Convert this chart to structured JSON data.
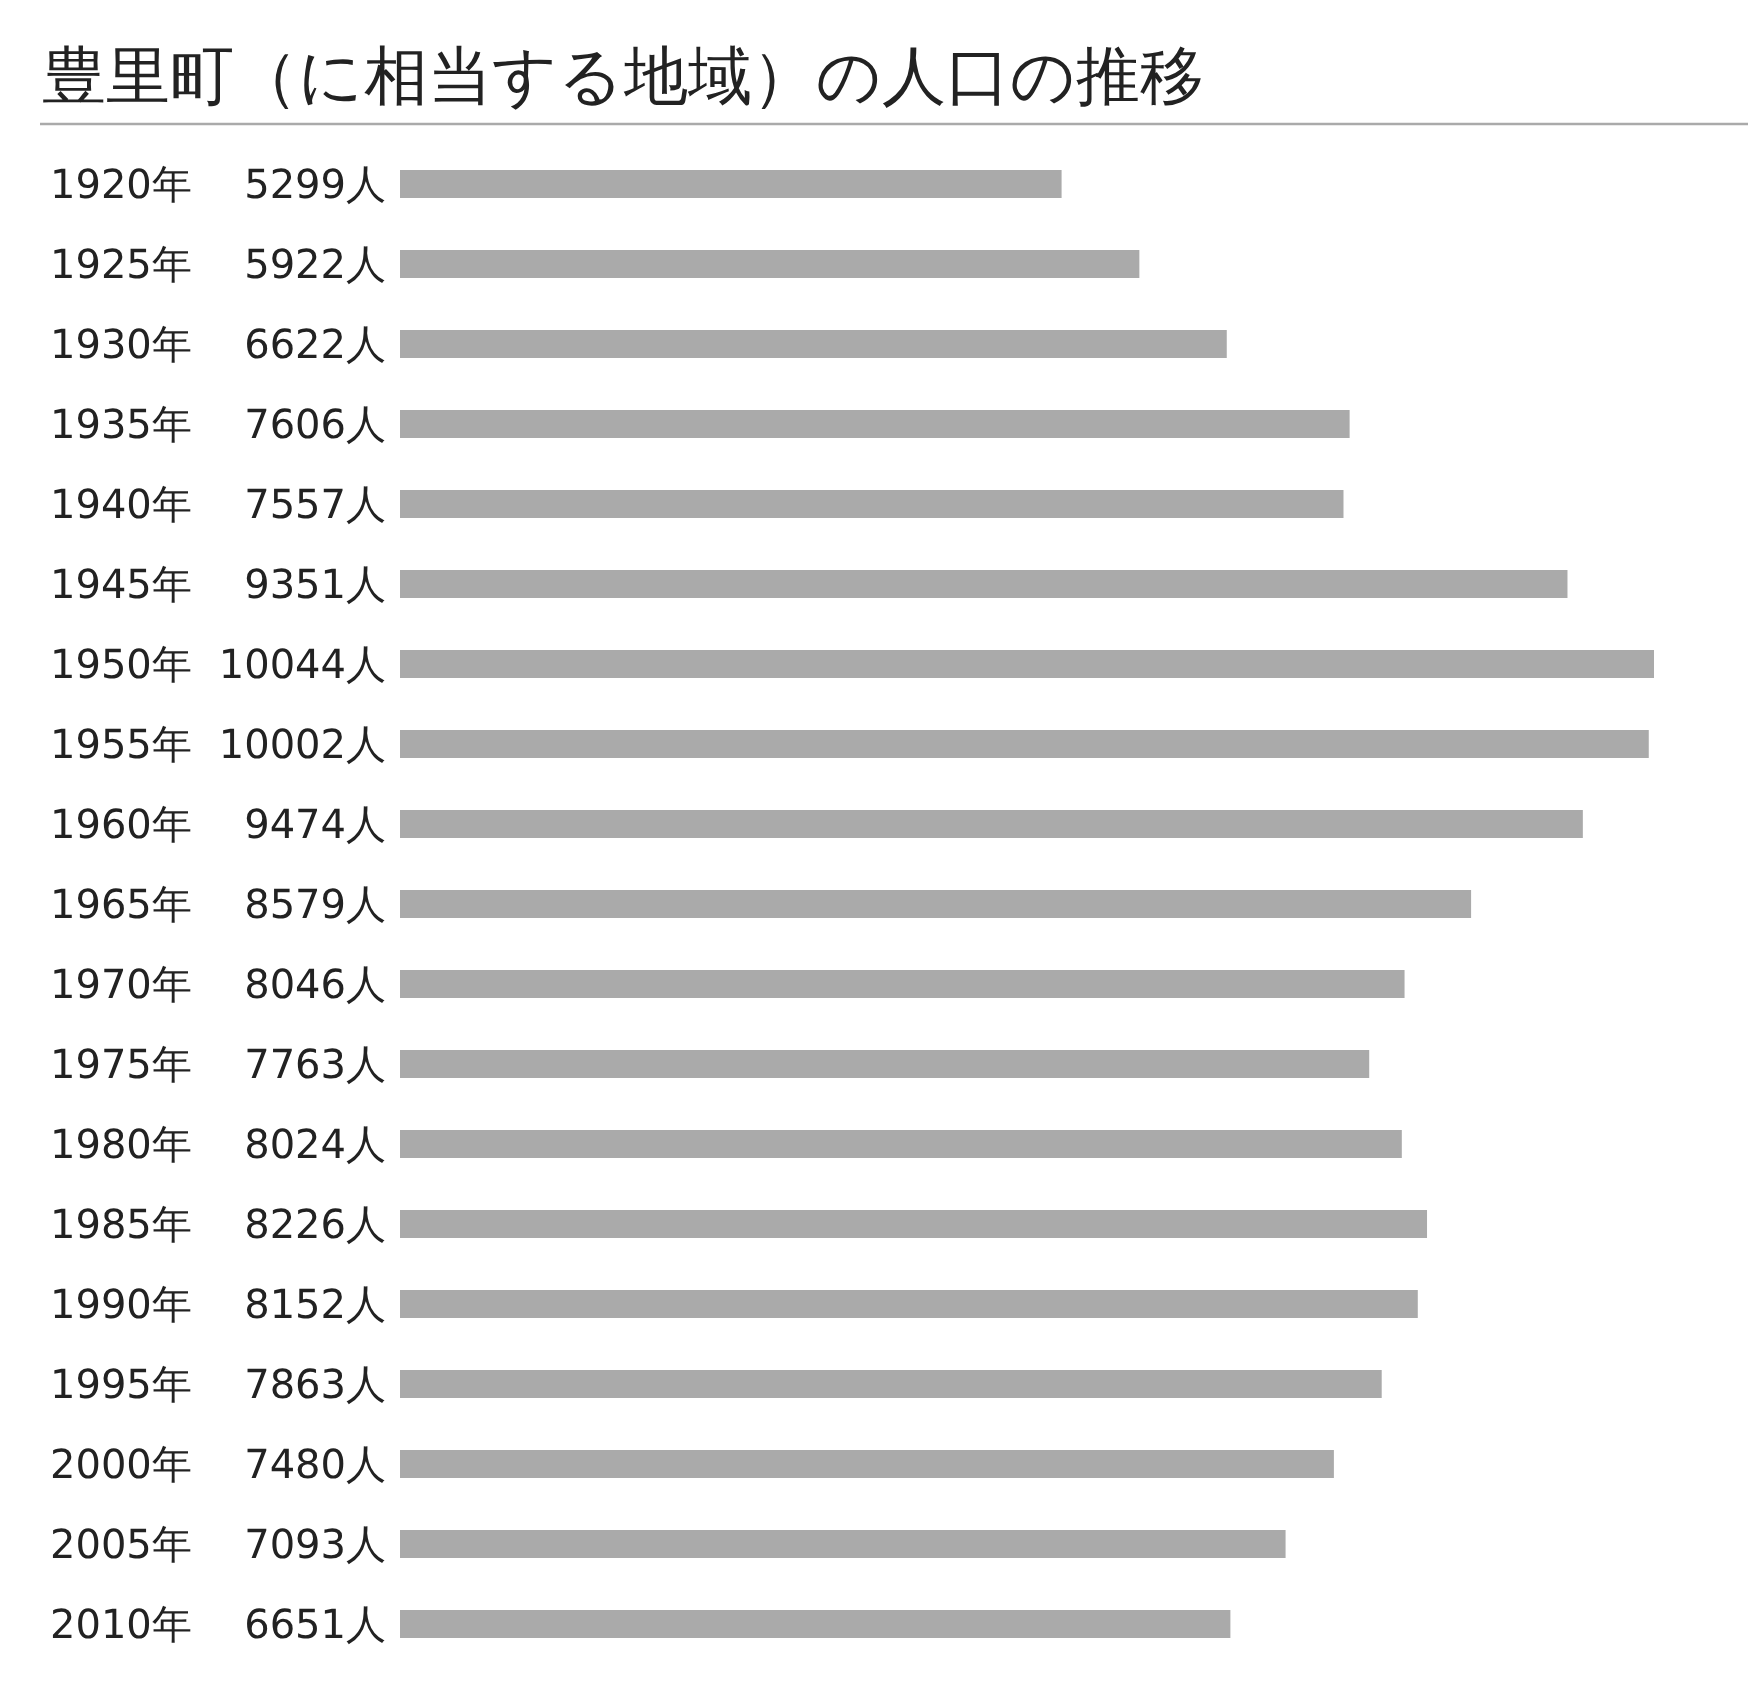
{
  "chart_data": {
    "type": "bar",
    "orientation": "horizontal",
    "title": "豊里町（に相当する地域）の人口の推移",
    "categories": [
      "1920年",
      "1925年",
      "1930年",
      "1935年",
      "1940年",
      "1945年",
      "1950年",
      "1955年",
      "1960年",
      "1965年",
      "1970年",
      "1975年",
      "1980年",
      "1985年",
      "1990年",
      "1995年",
      "2000年",
      "2005年",
      "2010年"
    ],
    "values": [
      5299,
      5922,
      6622,
      7606,
      7557,
      9351,
      10044,
      10002,
      9474,
      8579,
      8046,
      7763,
      8024,
      8226,
      8152,
      7863,
      7480,
      7093,
      6651
    ],
    "value_labels": [
      "5299人",
      "5922人",
      "6622人",
      "7606人",
      "7557人",
      "9351人",
      "10044人",
      "10002人",
      "9474人",
      "8579人",
      "8046人",
      "7763人",
      "8024人",
      "8226人",
      "8152人",
      "7863人",
      "7480人",
      "7093人",
      "6651人"
    ],
    "color": "#aaaaaa"
  }
}
